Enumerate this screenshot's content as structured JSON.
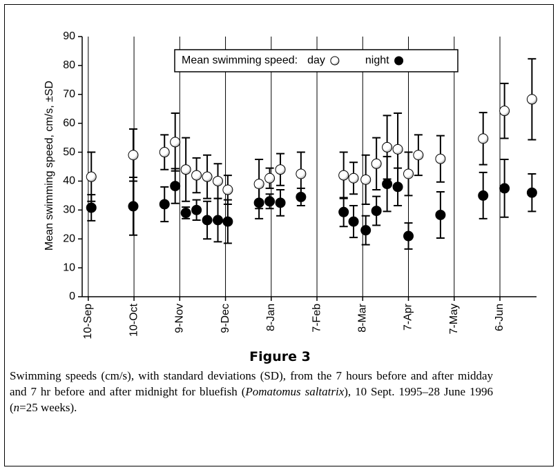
{
  "chart_data": {
    "type": "scatter",
    "y_label": "Mean swimming speed, cm/s, ±SD",
    "legend_title": "Mean swimming speed:",
    "legend_position": "top",
    "grid": true,
    "x": [
      2,
      29.5,
      50,
      57,
      64,
      71,
      78,
      85,
      91.5,
      112,
      119,
      126,
      139.5,
      167.5,
      174,
      182,
      189,
      196,
      203,
      210,
      216.5,
      231,
      259,
      273,
      291
    ],
    "series": [
      {
        "name": "day",
        "color": "#ffffff",
        "values": [
          41.5,
          49,
          50,
          53.5,
          44,
          42,
          41.5,
          40,
          37,
          39,
          41,
          44,
          42.5,
          42,
          41,
          40.5,
          46,
          51.7,
          51,
          42.5,
          49,
          47.7,
          54.7,
          64.3,
          68.3
        ],
        "errors": [
          8.5,
          9,
          6,
          10,
          11,
          6,
          7.5,
          6,
          5,
          8.5,
          3.5,
          5.5,
          7.5,
          8,
          5.5,
          8.5,
          9,
          11,
          12.5,
          7.5,
          7,
          8,
          9,
          9.5,
          14
        ]
      },
      {
        "name": "night",
        "color": "#000000",
        "values": [
          30.8,
          31.3,
          32,
          38.3,
          29,
          30,
          26.5,
          26.5,
          26,
          32.5,
          33,
          32.5,
          34.5,
          29.3,
          26,
          23,
          29.7,
          39,
          38,
          21,
          null,
          28.3,
          35,
          37.5,
          36
        ],
        "errors": [
          4.5,
          10,
          6,
          6,
          2,
          3.5,
          6.5,
          7.5,
          7.5,
          5.5,
          2.5,
          4.5,
          3,
          5,
          5.5,
          5,
          5,
          9.5,
          6.5,
          4.5,
          null,
          8,
          8,
          10,
          6.5
        ]
      }
    ],
    "xlim": [
      -4,
      294
    ],
    "xticks": [
      {
        "value": 0,
        "label": "10-Sep"
      },
      {
        "value": 30,
        "label": "10-Oct"
      },
      {
        "value": 60,
        "label": "9-Nov"
      },
      {
        "value": 90,
        "label": "9-Dec"
      },
      {
        "value": 120,
        "label": "8-Jan"
      },
      {
        "value": 150,
        "label": "7-Feb"
      },
      {
        "value": 180,
        "label": "8-Mar"
      },
      {
        "value": 210,
        "label": "7-Apr"
      },
      {
        "value": 240,
        "label": "7-May"
      },
      {
        "value": 270,
        "label": "6-Jun"
      }
    ],
    "ylim": [
      0,
      90
    ],
    "yticks": [
      0,
      10,
      20,
      30,
      40,
      50,
      60,
      70,
      80,
      90
    ],
    "figure_label": "Figure 3",
    "caption": [
      {
        "text": "Swimming speeds (cm/s), with standard deviations (SD), from the 7 hours before and after midday and 7 hr before and after midnight for bluefish ("
      },
      {
        "text": "Pomatomus saltatrix",
        "italic": true
      },
      {
        "text": "), 10 Sept. 1995–28 June 1996 ("
      },
      {
        "text": "n",
        "italic": true
      },
      {
        "text": "=25 weeks)."
      }
    ]
  }
}
